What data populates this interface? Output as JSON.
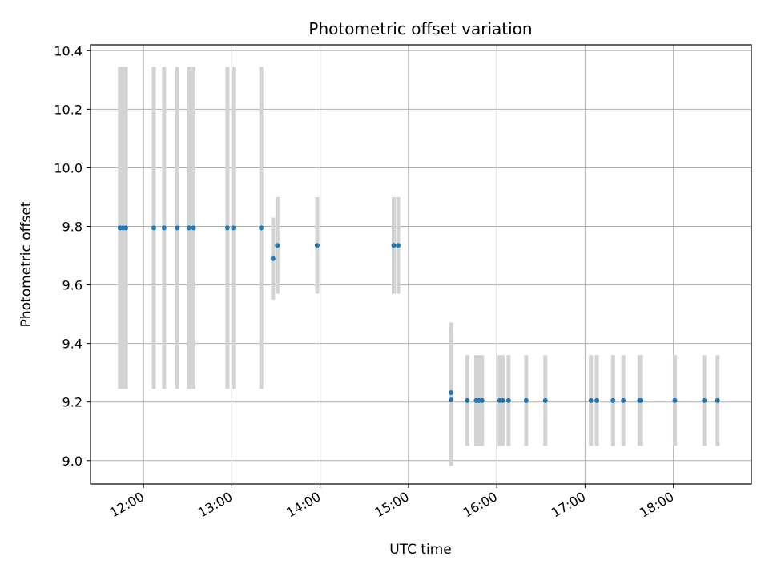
{
  "chart_data": {
    "type": "scatter",
    "title": "Photometric offset variation",
    "xlabel": "UTC time",
    "ylabel": "Photometric offset",
    "xlim": [
      "11:24",
      "18:53"
    ],
    "ylim": [
      8.92,
      10.42
    ],
    "x_ticks": [
      "12:00",
      "13:00",
      "14:00",
      "15:00",
      "16:00",
      "17:00",
      "18:00"
    ],
    "y_ticks": [
      "9.0",
      "9.2",
      "9.4",
      "9.6",
      "9.8",
      "10.0",
      "10.2",
      "10.4"
    ],
    "grid": true,
    "colors": {
      "points": "#1f77b4",
      "error_bars": "#d3d3d3",
      "grid": "#b0b0b0"
    },
    "series": [
      {
        "points": [
          {
            "x": "11:44",
            "y": 9.795,
            "err": 0.55
          },
          {
            "x": "11:46",
            "y": 9.795,
            "err": 0.55
          },
          {
            "x": "11:48",
            "y": 9.795,
            "err": 0.55
          },
          {
            "x": "12:07",
            "y": 9.795,
            "err": 0.55
          },
          {
            "x": "12:14",
            "y": 9.795,
            "err": 0.55
          },
          {
            "x": "12:23",
            "y": 9.795,
            "err": 0.55
          },
          {
            "x": "12:31",
            "y": 9.795,
            "err": 0.55
          },
          {
            "x": "12:34",
            "y": 9.795,
            "err": 0.55
          },
          {
            "x": "12:57",
            "y": 9.795,
            "err": 0.55
          },
          {
            "x": "13:01",
            "y": 9.795,
            "err": 0.55
          },
          {
            "x": "13:20",
            "y": 9.795,
            "err": 0.55
          },
          {
            "x": "13:28",
            "y": 9.69,
            "err": 0.14
          },
          {
            "x": "13:31",
            "y": 9.735,
            "err": 0.165
          },
          {
            "x": "13:58",
            "y": 9.735,
            "err": 0.165
          },
          {
            "x": "14:50",
            "y": 9.735,
            "err": 0.165
          },
          {
            "x": "14:53",
            "y": 9.735,
            "err": 0.165
          },
          {
            "x": "15:29",
            "y": 9.232,
            "err": 0.24
          },
          {
            "x": "15:29",
            "y": 9.207,
            "err": 0.225
          },
          {
            "x": "15:40",
            "y": 9.205,
            "err": 0.155
          },
          {
            "x": "15:46",
            "y": 9.205,
            "err": 0.155
          },
          {
            "x": "15:48",
            "y": 9.205,
            "err": 0.155
          },
          {
            "x": "15:50",
            "y": 9.205,
            "err": 0.155
          },
          {
            "x": "16:02",
            "y": 9.205,
            "err": 0.155
          },
          {
            "x": "16:04",
            "y": 9.205,
            "err": 0.155
          },
          {
            "x": "16:08",
            "y": 9.205,
            "err": 0.155
          },
          {
            "x": "16:20",
            "y": 9.205,
            "err": 0.155
          },
          {
            "x": "16:33",
            "y": 9.205,
            "err": 0.155
          },
          {
            "x": "17:04",
            "y": 9.205,
            "err": 0.155
          },
          {
            "x": "17:08",
            "y": 9.205,
            "err": 0.155
          },
          {
            "x": "17:19",
            "y": 9.205,
            "err": 0.155
          },
          {
            "x": "17:26",
            "y": 9.205,
            "err": 0.155
          },
          {
            "x": "17:37",
            "y": 9.205,
            "err": 0.155
          },
          {
            "x": "17:38",
            "y": 9.205,
            "err": 0.155
          },
          {
            "x": "18:01",
            "y": 9.205,
            "err": 0.155
          },
          {
            "x": "18:21",
            "y": 9.205,
            "err": 0.155
          },
          {
            "x": "18:30",
            "y": 9.205,
            "err": 0.155
          }
        ]
      }
    ]
  }
}
